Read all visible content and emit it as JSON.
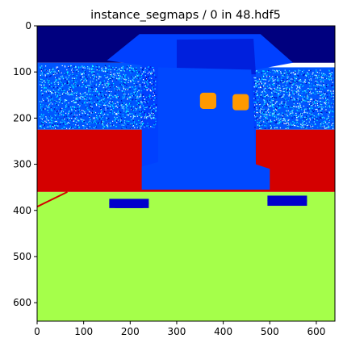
{
  "chart_data": {
    "type": "heatmap",
    "title": "instance_segmaps / 0 in 48.hdf5",
    "colormap": "jet",
    "xlim": [
      0,
      640
    ],
    "ylim": [
      640,
      0
    ],
    "x_ticks": [
      0,
      100,
      200,
      300,
      400,
      500,
      600
    ],
    "y_ticks": [
      0,
      100,
      200,
      300,
      400,
      500,
      600
    ],
    "regions": [
      {
        "label": "background-top",
        "color": "#00007f",
        "x": [
          0,
          640
        ],
        "y": [
          0,
          80
        ]
      },
      {
        "label": "wall-left",
        "color": "#0055ff",
        "x": [
          0,
          255
        ],
        "y": [
          80,
          225
        ]
      },
      {
        "label": "wall-right",
        "color": "#0055ff",
        "x": [
          465,
          640
        ],
        "y": [
          90,
          225
        ]
      },
      {
        "label": "red-band",
        "color": "#d40000",
        "x": [
          0,
          640
        ],
        "y": [
          225,
          360
        ]
      },
      {
        "label": "floor",
        "color": "#a5ff4a",
        "x": [
          0,
          640
        ],
        "y": [
          360,
          640
        ]
      },
      {
        "label": "machine-body",
        "color": "#0040ff",
        "x": [
          225,
          470
        ],
        "y": [
          20,
          355
        ]
      },
      {
        "label": "orange-square-left",
        "color": "#ff9900",
        "x": [
          350,
          385
        ],
        "y": [
          145,
          180
        ]
      },
      {
        "label": "orange-square-right",
        "color": "#ff9900",
        "x": [
          420,
          455
        ],
        "y": [
          148,
          183
        ]
      },
      {
        "label": "pad-left",
        "color": "#0000cc",
        "x": [
          155,
          240
        ],
        "y": [
          375,
          395
        ]
      },
      {
        "label": "pad-right",
        "color": "#0000cc",
        "x": [
          495,
          580
        ],
        "y": [
          368,
          390
        ]
      }
    ]
  }
}
